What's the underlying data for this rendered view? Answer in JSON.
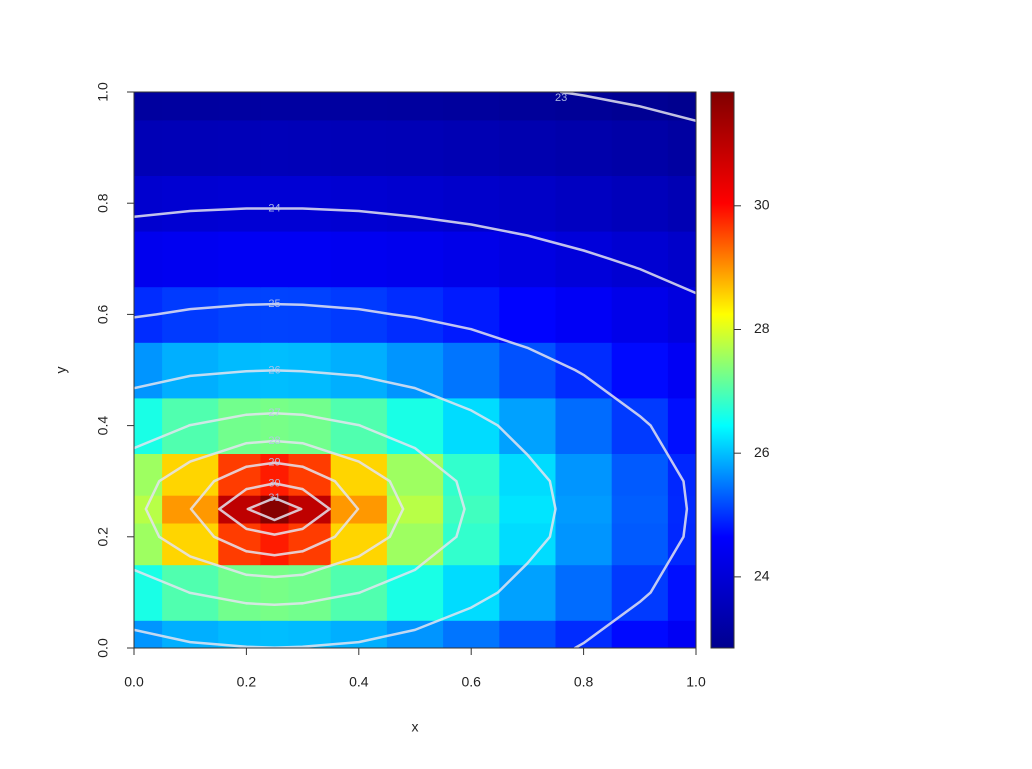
{
  "chart_data": {
    "type": "heatmap",
    "x_label": "x",
    "y_label": "y",
    "x": [
      0,
      0.1,
      0.2,
      0.25,
      0.3,
      0.4,
      0.5,
      0.6,
      0.7,
      0.8,
      0.9,
      1.0
    ],
    "y": [
      0,
      0.1,
      0.2,
      0.25,
      0.3,
      0.4,
      0.5,
      0.6,
      0.7,
      0.8,
      0.9,
      1.0
    ],
    "z": [
      [
        25.7,
        25.88,
        25.97,
        25.99,
        25.97,
        25.88,
        25.7,
        25.47,
        25.22,
        24.96,
        24.71,
        24.47
      ],
      [
        26.62,
        27.01,
        27.25,
        27.29,
        27.25,
        27.01,
        26.62,
        26.2,
        25.78,
        25.41,
        25.06,
        24.75
      ],
      [
        27.56,
        28.54,
        29.62,
        29.85,
        29.62,
        28.54,
        27.56,
        26.8,
        26.2,
        25.7,
        25.28,
        24.92
      ],
      [
        27.74,
        28.97,
        30.96,
        31.75,
        30.96,
        28.97,
        27.74,
        26.9,
        26.26,
        25.74,
        25.31,
        24.94
      ],
      [
        27.56,
        28.54,
        29.62,
        29.85,
        29.62,
        28.54,
        27.56,
        26.8,
        26.2,
        25.7,
        25.28,
        24.92
      ],
      [
        26.62,
        27.01,
        27.25,
        27.29,
        27.25,
        27.01,
        26.62,
        26.2,
        25.78,
        25.41,
        25.06,
        24.75
      ],
      [
        25.7,
        25.88,
        25.97,
        25.99,
        25.97,
        25.88,
        25.7,
        25.47,
        25.22,
        24.96,
        24.71,
        24.47
      ],
      [
        24.96,
        25.06,
        25.11,
        25.12,
        25.11,
        25.06,
        24.96,
        24.83,
        24.67,
        24.5,
        24.31,
        24.13
      ],
      [
        24.37,
        24.43,
        24.47,
        24.47,
        24.47,
        24.43,
        24.37,
        24.29,
        24.18,
        24.06,
        23.93,
        23.79
      ],
      [
        23.88,
        23.93,
        23.95,
        23.95,
        23.95,
        23.93,
        23.88,
        23.82,
        23.75,
        23.66,
        23.56,
        23.45
      ],
      [
        23.47,
        23.5,
        23.51,
        23.52,
        23.51,
        23.5,
        23.47,
        23.42,
        23.37,
        23.3,
        23.23,
        23.14
      ],
      [
        23.11,
        23.13,
        23.14,
        23.14,
        23.14,
        23.13,
        23.11,
        23.08,
        23.03,
        22.98,
        22.92,
        22.85
      ]
    ],
    "xlim": [
      0,
      1
    ],
    "ylim": [
      0,
      1
    ],
    "xticks": [
      {
        "value": 0,
        "label": "0.0"
      },
      0.2,
      0.4,
      0.6,
      0.8,
      {
        "value": 1,
        "label": "1.0"
      }
    ],
    "yticks": [
      {
        "value": 0,
        "label": "0.0"
      },
      0.2,
      0.4,
      0.6,
      0.8,
      {
        "value": 1,
        "label": "1.0"
      }
    ],
    "zlim": [
      22.85,
      31.84
    ],
    "zticks": [
      24,
      26,
      28,
      30
    ],
    "colormap": [
      "#00008f",
      "#0000ff",
      "#00ffff",
      "#ffff00",
      "#ff0000",
      "#800000"
    ],
    "contour_levels": [
      23,
      24,
      25,
      26,
      27,
      28,
      29,
      30,
      31
    ],
    "contour_color": "#e4e4f0"
  }
}
